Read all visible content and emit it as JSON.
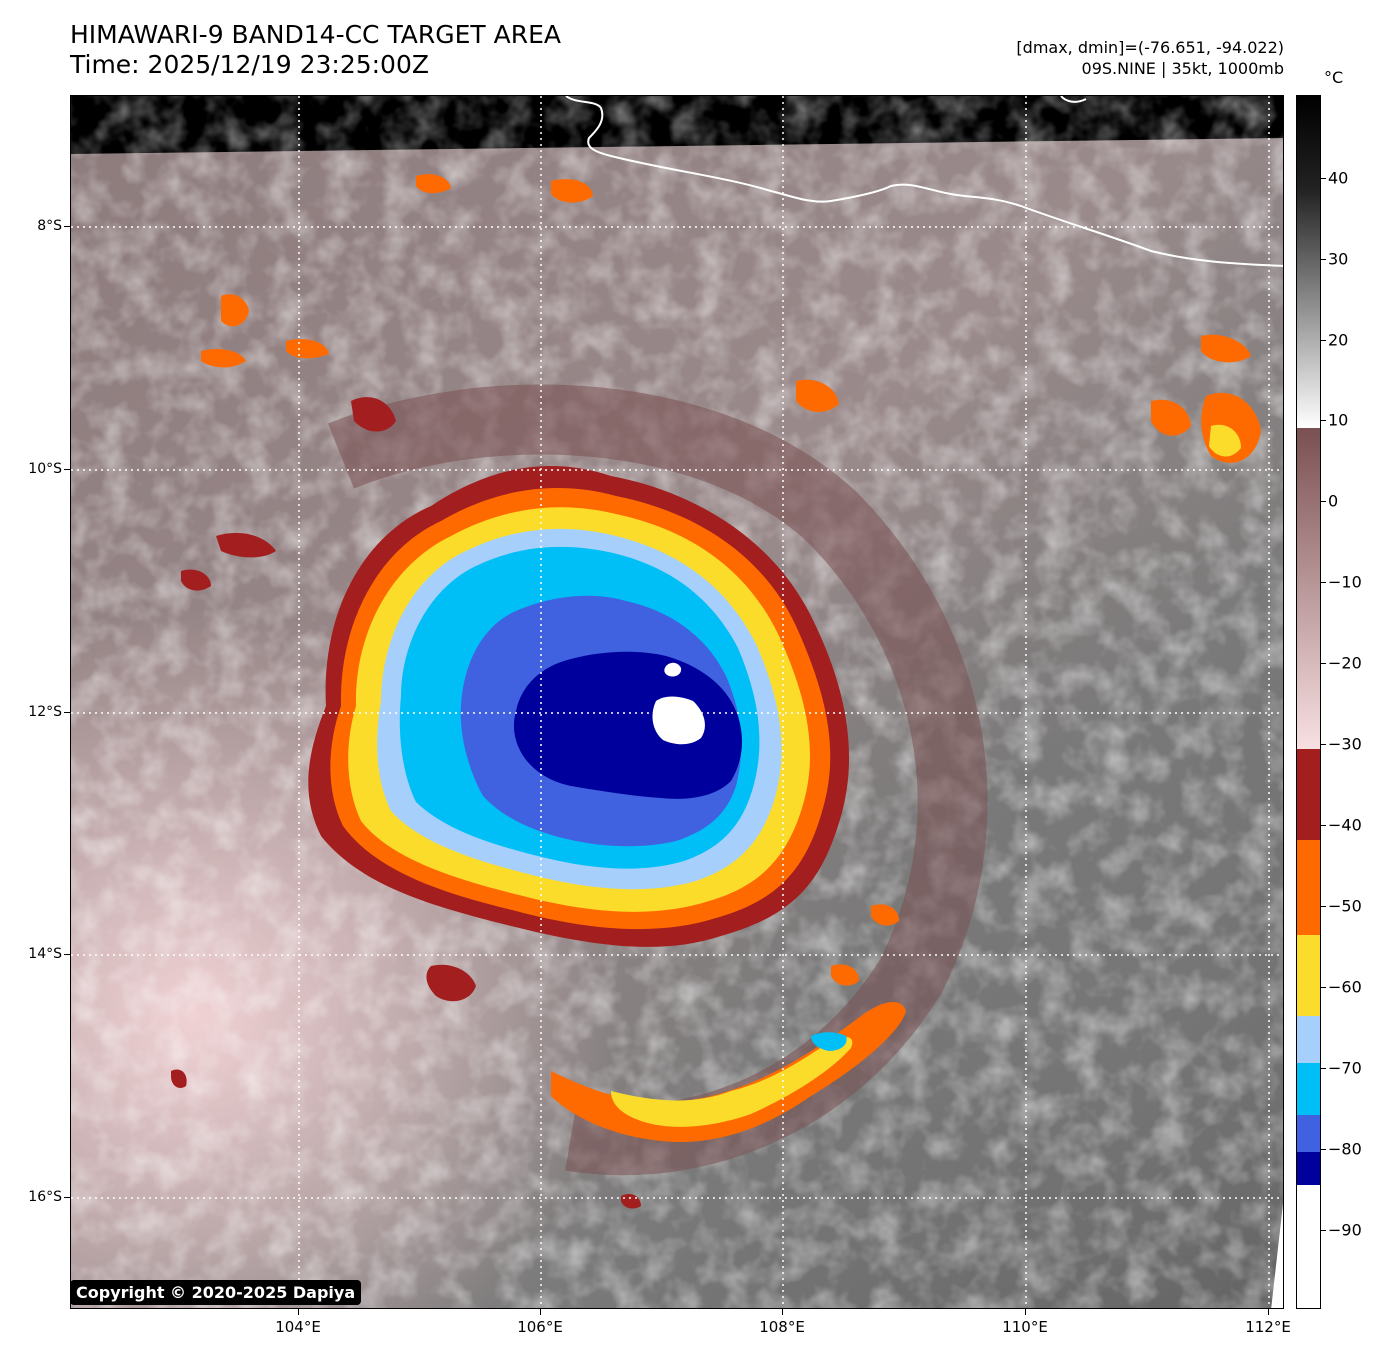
{
  "title": {
    "line1": "HIMAWARI-9 BAND14-CC TARGET AREA",
    "line2": "Time: 2025/12/19 23:25:00Z"
  },
  "info": {
    "range": "[dmax, dmin]=(-76.651, -94.022)",
    "storm": "09S.NINE | 35kt, 1000mb"
  },
  "colorbar": {
    "unit": "°C",
    "labels": [
      "40",
      "30",
      "20",
      "10",
      "0",
      "−10",
      "−20",
      "−30",
      "−40",
      "−50",
      "−60",
      "−70",
      "−80",
      "−90"
    ]
  },
  "axes": {
    "x_ticks": [
      "104°E",
      "106°E",
      "108°E",
      "110°E",
      "112°E"
    ],
    "y_ticks": [
      "8°S",
      "10°S",
      "12°S",
      "14°S",
      "16°S"
    ]
  },
  "copyright": "Copyright © 2020-2025 Dapiya",
  "palette": {
    "red": "#a31f1f",
    "orange": "#ff6a00",
    "yellow": "#fcdc2a",
    "lightblue": "#a6d0fb",
    "cyan": "#00bff6",
    "royal": "#4062e0",
    "navy": "#00009c",
    "brownish": "#7a5556",
    "pink": "#f3d6d8"
  }
}
